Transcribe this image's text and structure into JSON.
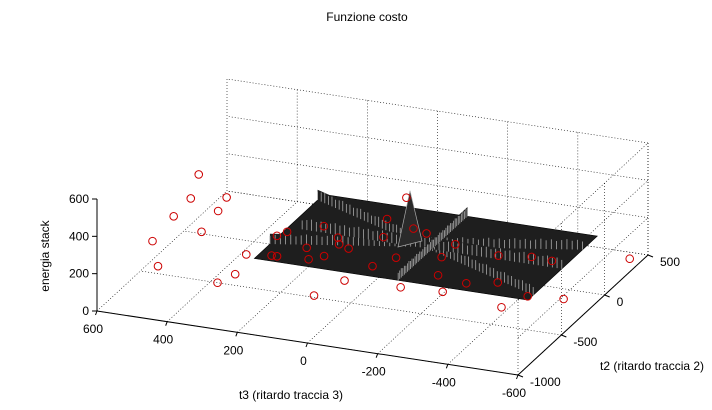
{
  "chart_data": {
    "type": "surface",
    "title": "Funzione costo",
    "xlabel": "t3 (ritardo traccia 3)",
    "ylabel": "t2 (ritardo traccia 2)",
    "zlabel": "energia stack",
    "x_ticks": [
      "600",
      "400",
      "200",
      "0",
      "-200",
      "-400",
      "-600"
    ],
    "y_ticks": [
      "500",
      "0",
      "-500",
      "-1000"
    ],
    "z_ticks": [
      "0",
      "200",
      "400",
      "600"
    ],
    "xlim": [
      -600,
      600
    ],
    "ylim": [
      -1000,
      500
    ],
    "zlim": [
      0,
      600
    ],
    "grid": true,
    "surface_color": "#1e1e1e",
    "ridge_color": "#a8a8a8",
    "marker_color": "#cc0000",
    "marker_points": [
      [
        520,
        -150,
        390
      ],
      [
        470,
        -320,
        170
      ],
      [
        440,
        -250,
        260
      ],
      [
        480,
        10,
        210
      ],
      [
        560,
        -80,
        220
      ],
      [
        590,
        -400,
        120
      ],
      [
        500,
        -520,
        330
      ],
      [
        520,
        -620,
        100
      ],
      [
        380,
        -500,
        0
      ],
      [
        300,
        -620,
        120
      ],
      [
        230,
        -420,
        150
      ],
      [
        150,
        -380,
        140
      ],
      [
        100,
        -520,
        20
      ],
      [
        340,
        -330,
        90
      ],
      [
        260,
        -300,
        200
      ],
      [
        200,
        -200,
        110
      ],
      [
        120,
        -150,
        130
      ],
      [
        60,
        -330,
        30
      ],
      [
        0,
        -250,
        90
      ],
      [
        -40,
        -140,
        100
      ],
      [
        -100,
        -330,
        40
      ],
      [
        -140,
        -60,
        0
      ],
      [
        -200,
        -250,
        10
      ],
      [
        -250,
        -180,
        40
      ],
      [
        -320,
        -100,
        30
      ],
      [
        -380,
        -300,
        0
      ],
      [
        -430,
        -200,
        30
      ],
      [
        -520,
        -150,
        20
      ],
      [
        -120,
        220,
        40
      ],
      [
        -260,
        150,
        50
      ],
      [
        -330,
        250,
        20
      ],
      [
        -420,
        120,
        80
      ],
      [
        -60,
        130,
        120
      ],
      [
        -20,
        60,
        330
      ],
      [
        -60,
        -20,
        210
      ],
      [
        40,
        80,
        190
      ],
      [
        80,
        200,
        30
      ],
      [
        180,
        80,
        50
      ],
      [
        240,
        160,
        60
      ],
      [
        320,
        60,
        50
      ],
      [
        120,
        -40,
        60
      ],
      [
        -580,
        370,
        30
      ],
      [
        -160,
        -100,
        120
      ],
      [
        300,
        -200,
        40
      ],
      [
        180,
        -80,
        20
      ]
    ]
  }
}
